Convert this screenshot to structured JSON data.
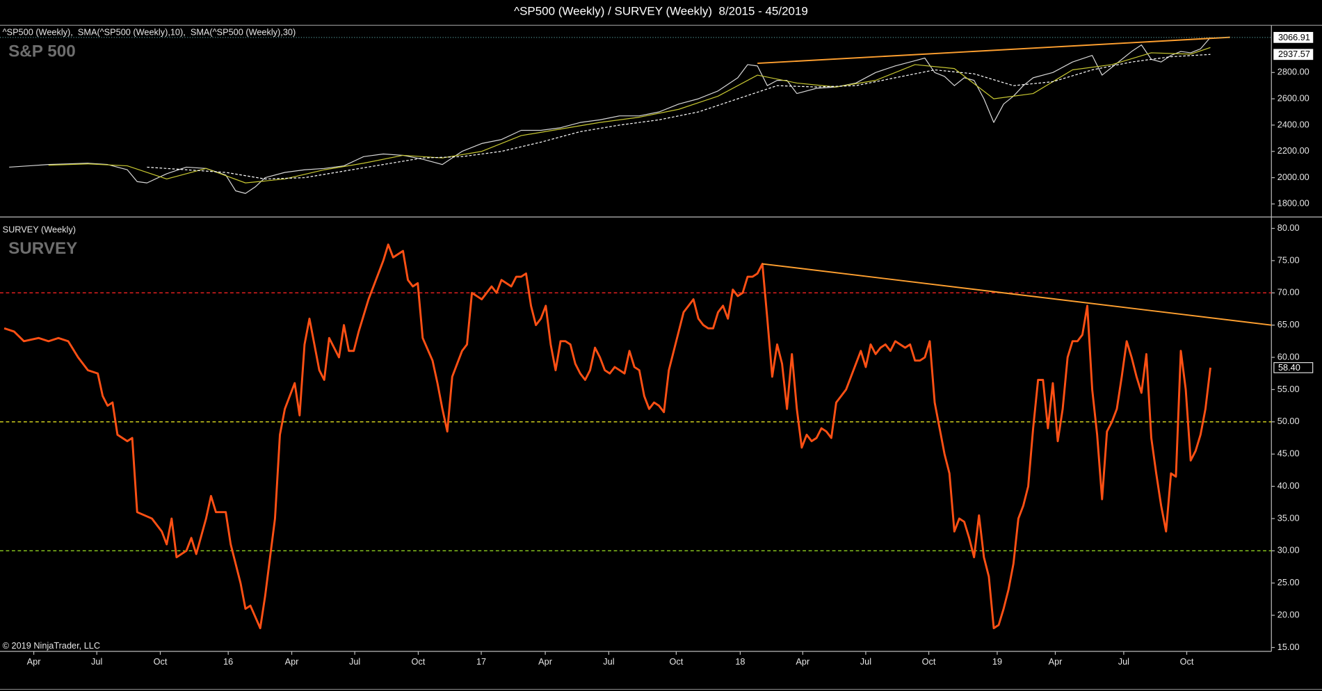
{
  "chart_data": [
    {
      "type": "line",
      "title": "^SP500 (Weekly) / SURVEY (Weekly)  8/2015 - 45/2019",
      "panel_title": "S&P 500",
      "legend_separator": ",  ",
      "xlim": [
        -0.86,
        257.4
      ],
      "ylim": [
        1704,
        3108
      ],
      "yticks": [
        {
          "value": 1800,
          "label": "1800.00"
        },
        {
          "value": 2000,
          "label": "2000.00"
        },
        {
          "value": 2200,
          "label": "2200.00"
        },
        {
          "value": 2400,
          "label": "2400.00"
        },
        {
          "value": 2600,
          "label": "2600.00"
        },
        {
          "value": 2800,
          "label": "2800.00"
        }
      ],
      "series": [
        {
          "name": "^SP500 (Weekly)",
          "color": "#d8d8d8",
          "dashed": false,
          "last_label": "3066.91",
          "x": [
            1,
            5,
            9,
            13,
            17,
            21,
            25,
            27,
            29,
            33,
            37,
            41,
            45,
            47,
            49,
            51,
            53,
            57,
            61,
            65,
            69,
            73,
            77,
            81,
            85,
            89,
            93,
            97,
            101,
            105,
            109,
            113,
            117,
            121,
            125,
            129,
            133,
            137,
            141,
            145,
            149,
            151,
            153,
            155,
            157,
            159,
            161,
            165,
            169,
            173,
            177,
            181,
            185,
            187,
            189,
            191,
            193,
            195,
            197,
            199,
            201,
            203,
            205,
            207,
            209,
            213,
            217,
            221,
            223,
            225,
            229,
            231,
            233,
            235,
            237,
            239,
            241,
            243,
            245
          ],
          "values": [
            2080,
            2090,
            2100,
            2105,
            2110,
            2100,
            2060,
            1970,
            1960,
            2030,
            2080,
            2070,
            2020,
            1900,
            1880,
            1930,
            2000,
            2040,
            2060,
            2070,
            2090,
            2160,
            2180,
            2170,
            2140,
            2100,
            2200,
            2260,
            2290,
            2360,
            2360,
            2380,
            2420,
            2440,
            2470,
            2470,
            2500,
            2560,
            2600,
            2660,
            2760,
            2860,
            2850,
            2700,
            2740,
            2740,
            2640,
            2680,
            2690,
            2720,
            2800,
            2850,
            2890,
            2910,
            2800,
            2770,
            2700,
            2760,
            2740,
            2600,
            2420,
            2560,
            2620,
            2700,
            2760,
            2800,
            2880,
            2930,
            2780,
            2840,
            2960,
            3010,
            2900,
            2880,
            2930,
            2960,
            2950,
            2980,
            3066.91
          ]
        },
        {
          "name": "SMA(^SP500 (Weekly),10)",
          "color": "#c8c832",
          "dashed": false,
          "x": [
            9,
            17,
            25,
            33,
            41,
            49,
            57,
            65,
            73,
            81,
            89,
            97,
            105,
            113,
            121,
            129,
            137,
            145,
            153,
            161,
            169,
            177,
            185,
            193,
            201,
            209,
            217,
            225,
            233,
            241,
            245
          ],
          "values": [
            2095,
            2105,
            2090,
            1990,
            2070,
            1960,
            1990,
            2060,
            2110,
            2170,
            2150,
            2200,
            2320,
            2370,
            2420,
            2460,
            2520,
            2620,
            2780,
            2720,
            2690,
            2740,
            2860,
            2830,
            2600,
            2640,
            2820,
            2860,
            2950,
            2940,
            2990
          ]
        },
        {
          "name": "SMA(^SP500 (Weekly),30)",
          "color": "#ffffff",
          "dashed": true,
          "last_label": "2937.57",
          "x": [
            29,
            37,
            45,
            53,
            61,
            69,
            77,
            85,
            93,
            101,
            109,
            117,
            125,
            133,
            141,
            149,
            157,
            165,
            173,
            181,
            189,
            197,
            205,
            213,
            221,
            229,
            237,
            245
          ],
          "values": [
            2080,
            2060,
            2040,
            1990,
            2000,
            2050,
            2100,
            2150,
            2160,
            2200,
            2270,
            2350,
            2400,
            2440,
            2500,
            2600,
            2700,
            2690,
            2700,
            2760,
            2820,
            2790,
            2700,
            2730,
            2820,
            2880,
            2920,
            2937.57
          ]
        }
      ],
      "trendline": {
        "color": "#ffa030",
        "x": [
          153,
          249
        ],
        "values": [
          2870,
          3068
        ]
      }
    },
    {
      "type": "line",
      "panel_title": "SURVEY",
      "annotation": "© 2019 NinjaTrader, LLC",
      "xlim": [
        -0.86,
        257.4
      ],
      "ylim": [
        14.4,
        81.7
      ],
      "xticks": [
        {
          "value": 6.0,
          "label": "Apr"
        },
        {
          "value": 18.8,
          "label": "Jul"
        },
        {
          "value": 31.7,
          "label": "Oct"
        },
        {
          "value": 45.5,
          "label": "16"
        },
        {
          "value": 58.4,
          "label": "Apr"
        },
        {
          "value": 71.2,
          "label": "Jul"
        },
        {
          "value": 84.1,
          "label": "Oct"
        },
        {
          "value": 96.9,
          "label": "17"
        },
        {
          "value": 109.9,
          "label": "Apr"
        },
        {
          "value": 122.8,
          "label": "Jul"
        },
        {
          "value": 136.5,
          "label": "Oct"
        },
        {
          "value": 149.5,
          "label": "18"
        },
        {
          "value": 162.2,
          "label": "Apr"
        },
        {
          "value": 175.0,
          "label": "Jul"
        },
        {
          "value": 187.8,
          "label": "Oct"
        },
        {
          "value": 201.7,
          "label": "19"
        },
        {
          "value": 213.5,
          "label": "Apr"
        },
        {
          "value": 227.4,
          "label": "Jul"
        },
        {
          "value": 240.2,
          "label": "Oct"
        }
      ],
      "yticks": [
        {
          "value": 15,
          "label": "15.00"
        },
        {
          "value": 20,
          "label": "20.00"
        },
        {
          "value": 25,
          "label": "25.00"
        },
        {
          "value": 30,
          "label": "30.00"
        },
        {
          "value": 35,
          "label": "35.00"
        },
        {
          "value": 40,
          "label": "40.00"
        },
        {
          "value": 45,
          "label": "45.00"
        },
        {
          "value": 50,
          "label": "50.00"
        },
        {
          "value": 55,
          "label": "55.00"
        },
        {
          "value": 60,
          "label": "60.00"
        },
        {
          "value": 65,
          "label": "65.00"
        },
        {
          "value": 70,
          "label": "70.00"
        },
        {
          "value": 75,
          "label": "75.00"
        },
        {
          "value": 80,
          "label": "80.00"
        }
      ],
      "hlines": [
        {
          "value": 70,
          "color": "#e02020"
        },
        {
          "value": 50,
          "color": "#e0e020"
        },
        {
          "value": 30,
          "color": "#90d020"
        }
      ],
      "series": [
        {
          "name": "SURVEY (Weekly)",
          "color": "#ff5014",
          "dashed": false,
          "last_label": "58.40",
          "x": [
            0,
            2,
            4,
            7,
            9,
            11,
            13,
            15,
            17,
            19,
            20,
            21,
            22,
            23,
            25,
            26,
            27,
            30,
            32,
            33,
            34,
            35,
            37,
            38,
            39,
            41,
            42,
            43,
            45,
            46,
            48,
            49,
            50,
            52,
            53,
            55,
            56,
            57,
            59,
            60,
            61,
            62,
            64,
            65,
            66,
            68,
            69,
            70,
            71,
            72,
            74,
            75,
            77,
            78,
            79,
            80,
            81,
            82,
            83,
            84,
            85,
            87,
            88,
            89,
            90,
            91,
            92,
            93,
            94,
            95,
            96,
            97,
            98,
            99,
            100,
            101,
            102,
            103,
            104,
            105,
            106,
            107,
            108,
            109,
            110,
            111,
            112,
            113,
            114,
            115,
            116,
            117,
            118,
            119,
            120,
            121,
            122,
            123,
            124,
            125,
            126,
            127,
            128,
            129,
            130,
            131,
            132,
            133,
            134,
            135,
            136,
            137,
            138,
            139,
            140,
            141,
            142,
            143,
            144,
            145,
            146,
            147,
            148,
            149,
            150,
            151,
            152,
            153,
            154,
            155,
            156,
            157,
            158,
            159,
            160,
            161,
            162,
            163,
            164,
            165,
            166,
            167,
            168,
            169,
            170,
            171,
            172,
            173,
            174,
            175,
            176,
            177,
            178,
            179,
            180,
            181,
            182,
            183,
            184,
            185,
            186,
            187,
            188,
            189,
            190,
            191,
            192,
            193,
            194,
            195,
            196,
            197,
            198,
            199,
            200,
            201,
            202,
            203,
            204,
            205,
            206,
            207,
            208,
            209,
            210,
            211,
            212,
            213,
            214,
            215,
            216,
            217,
            218,
            219,
            220,
            221,
            222,
            223,
            224,
            225,
            226,
            227,
            228,
            229,
            230,
            231,
            232,
            233,
            234,
            235,
            236,
            237,
            238,
            239,
            240,
            241,
            242,
            243,
            244,
            245
          ],
          "values": [
            64.5,
            64,
            62.5,
            63,
            62.5,
            63,
            62.5,
            60,
            58,
            57.5,
            54,
            52.5,
            53,
            48,
            47,
            47.5,
            36,
            35,
            33,
            31,
            35,
            29,
            30,
            32,
            29.5,
            35,
            38.5,
            36,
            36,
            31,
            25,
            21,
            21.5,
            18,
            23,
            35,
            48,
            52,
            56,
            51,
            62,
            66,
            58,
            56.5,
            63,
            60,
            65,
            61,
            61,
            64,
            69,
            71,
            75,
            77.5,
            75.5,
            76,
            76.5,
            72,
            71,
            71.5,
            63,
            59.5,
            56,
            52,
            48.5,
            57,
            59,
            61,
            62,
            70,
            69.5,
            69,
            70,
            71,
            70,
            72,
            71.5,
            71,
            72.5,
            72.5,
            73,
            68,
            65,
            66,
            68,
            62,
            58,
            62.5,
            62.5,
            62,
            59,
            57.5,
            56.5,
            58,
            61.5,
            60,
            58,
            57.5,
            58.5,
            58,
            57.5,
            61,
            58.5,
            58,
            54,
            52,
            53,
            52.5,
            51.5,
            58,
            61,
            64,
            67,
            68,
            69,
            66,
            65,
            64.5,
            64.5,
            67,
            68,
            66,
            70.5,
            69.5,
            70,
            72.5,
            72.5,
            73,
            74.5,
            66,
            57,
            62,
            59,
            52,
            60.5,
            52,
            46,
            48,
            47,
            47.5,
            49,
            48.5,
            47.5,
            53,
            54,
            55,
            57,
            59,
            61,
            58.5,
            62,
            60.5,
            61.5,
            62,
            61,
            62.5,
            62,
            61.5,
            62,
            59.5,
            59.5,
            60,
            62.5,
            53,
            49,
            45,
            42,
            33,
            35,
            34.5,
            32,
            29,
            35.5,
            29,
            26,
            18,
            18.5,
            21,
            24,
            28,
            35,
            37,
            40,
            49,
            56.5,
            56.5,
            49,
            56,
            47,
            52,
            60,
            62.5,
            62.5,
            63.5,
            68,
            55,
            48,
            38,
            48.5,
            50,
            52,
            57,
            62.5,
            60,
            57,
            54.5,
            60.5,
            47.5,
            42,
            37,
            33,
            42,
            41.5,
            61,
            55,
            44,
            45.5,
            48,
            52,
            58.4
          ]
        }
      ],
      "trendline": {
        "color": "#ffa030",
        "x": [
          154,
          257.4
        ],
        "values": [
          74.5,
          65
        ]
      }
    }
  ]
}
